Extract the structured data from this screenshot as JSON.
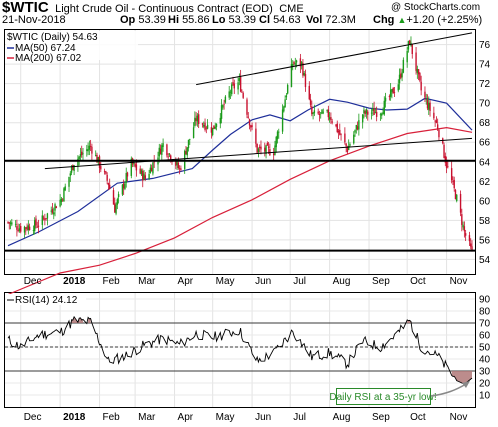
{
  "header": {
    "symbol": "$WTIC",
    "description": "Light Crude Oil - Continuous Contract (EOD)",
    "exchange": "CME",
    "watermark": "@ StockCharts.com",
    "date": "21-Nov-2018",
    "open_label": "Op",
    "open": "53.39",
    "high_label": "Hi",
    "high": "55.86",
    "low_label": "Lo",
    "low": "53.39",
    "close_label": "Cl",
    "close": "54.63",
    "volume_label": "Vol",
    "volume": "72.3M",
    "change_label": "Chg",
    "change": "+1.20 (+2.25%)",
    "up_arrow": "▲"
  },
  "legend": {
    "price": "$WTIC (Daily) 54.63",
    "ma50": "MA(50) 67.24",
    "ma200": "MA(200) 67.02"
  },
  "rsi_legend": "RSI(14) 24.12",
  "annotation": "Daily RSI at a 35-yr low!",
  "colors": {
    "candle_up": "#1a9a1a",
    "candle_down": "#c8102e",
    "ma50": "#1f2f9a",
    "ma200": "#d8203a",
    "trendline": "#000000",
    "rsi_line": "#000000",
    "rsi_fill": "#b07878",
    "annotation_text": "#2a8a2a"
  },
  "chart_data": [
    {
      "type": "candlestick",
      "title": "",
      "x_axis": {
        "labels": [
          "Dec",
          "2018",
          "Feb",
          "Mar",
          "Apr",
          "May",
          "Jun",
          "Jul",
          "Aug",
          "Sep",
          "Oct",
          "Nov"
        ],
        "range": [
          "2017-11-21",
          "2018-11-21"
        ]
      },
      "y_axis": {
        "range": [
          52.5,
          77.5
        ],
        "ticks": [
          54,
          56,
          58,
          60,
          62,
          64,
          66,
          68,
          70,
          72,
          74,
          76
        ]
      },
      "grid": true,
      "legend_position": "top-left",
      "series": [
        {
          "name": "$WTIC (Daily)",
          "kind": "price",
          "x": [
            "2017-11-21",
            "2017-12-01",
            "2017-12-15",
            "2018-01-02",
            "2018-01-12",
            "2018-01-25",
            "2018-02-08",
            "2018-02-13",
            "2018-02-26",
            "2018-03-09",
            "2018-03-23",
            "2018-04-05",
            "2018-04-18",
            "2018-05-01",
            "2018-05-15",
            "2018-05-22",
            "2018-06-05",
            "2018-06-18",
            "2018-07-03",
            "2018-07-10",
            "2018-07-18",
            "2018-08-01",
            "2018-08-15",
            "2018-08-27",
            "2018-09-10",
            "2018-09-24",
            "2018-10-03",
            "2018-10-12",
            "2018-10-25",
            "2018-11-01",
            "2018-11-09",
            "2018-11-15",
            "2018-11-21"
          ],
          "close": [
            57.8,
            57.2,
            57.6,
            60.2,
            64.0,
            65.6,
            61.8,
            59.2,
            63.8,
            62.3,
            65.8,
            63.2,
            68.4,
            67.3,
            71.3,
            72.2,
            65.2,
            65.1,
            74.1,
            74.0,
            68.8,
            68.8,
            65.3,
            68.9,
            69.2,
            72.1,
            76.4,
            71.3,
            67.6,
            63.7,
            60.2,
            56.8,
            54.63
          ]
        },
        {
          "name": "MA(50)",
          "kind": "line",
          "x": [
            "2017-11-21",
            "2017-12-15",
            "2018-01-15",
            "2018-02-15",
            "2018-03-15",
            "2018-04-15",
            "2018-05-01",
            "2018-05-15",
            "2018-06-01",
            "2018-06-15",
            "2018-07-01",
            "2018-07-15",
            "2018-08-01",
            "2018-08-15",
            "2018-09-01",
            "2018-09-15",
            "2018-10-01",
            "2018-10-15",
            "2018-11-01",
            "2018-11-21"
          ],
          "values": [
            55.4,
            56.8,
            58.9,
            61.8,
            62.3,
            63.3,
            65.2,
            66.8,
            68.3,
            68.8,
            68.2,
            69.3,
            70.4,
            70.1,
            69.5,
            69.3,
            69.4,
            70.5,
            70.0,
            67.24
          ]
        },
        {
          "name": "MA(200)",
          "kind": "line",
          "x": [
            "2017-11-21",
            "2018-01-01",
            "2018-02-01",
            "2018-03-01",
            "2018-04-01",
            "2018-05-01",
            "2018-06-01",
            "2018-07-01",
            "2018-08-01",
            "2018-09-01",
            "2018-10-01",
            "2018-11-01",
            "2018-11-21"
          ],
          "values": [
            50.4,
            52.6,
            53.4,
            54.6,
            56.2,
            58.3,
            60.1,
            62.2,
            64.1,
            65.6,
            66.9,
            67.5,
            67.02
          ]
        }
      ],
      "trendlines": {
        "channel_upper": {
          "x": [
            "2018-04-18",
            "2018-11-21"
          ],
          "y": [
            71.9,
            77.2
          ]
        },
        "channel_lower": {
          "x": [
            "2017-12-20",
            "2018-11-21"
          ],
          "y": [
            63.3,
            66.4
          ]
        },
        "support_high": {
          "y": 64.1
        },
        "support_low": {
          "y": 54.9
        }
      }
    },
    {
      "type": "line",
      "title": "",
      "x_axis": {
        "labels": [
          "Dec",
          "2018",
          "Feb",
          "Mar",
          "Apr",
          "May",
          "Jun",
          "Jul",
          "Aug",
          "Sep",
          "Oct",
          "Nov"
        ]
      },
      "y_axis": {
        "range": [
          0,
          95
        ],
        "ticks": [
          10,
          20,
          30,
          40,
          50,
          60,
          70,
          80,
          90
        ]
      },
      "reference_lines": [
        70,
        50,
        30
      ],
      "series": [
        {
          "name": "RSI(14)",
          "x": [
            "2017-11-21",
            "2017-12-01",
            "2017-12-15",
            "2018-01-02",
            "2018-01-12",
            "2018-01-25",
            "2018-02-08",
            "2018-02-20",
            "2018-03-09",
            "2018-03-23",
            "2018-04-05",
            "2018-04-18",
            "2018-05-01",
            "2018-05-22",
            "2018-06-05",
            "2018-06-18",
            "2018-07-03",
            "2018-07-18",
            "2018-08-01",
            "2018-08-15",
            "2018-08-27",
            "2018-09-10",
            "2018-09-24",
            "2018-10-03",
            "2018-10-12",
            "2018-10-25",
            "2018-11-01",
            "2018-11-09",
            "2018-11-15",
            "2018-11-21"
          ],
          "values": [
            56,
            50,
            60,
            63,
            72,
            71,
            38,
            42,
            52,
            57,
            52,
            61,
            58,
            64,
            38,
            45,
            63,
            42,
            45,
            36,
            55,
            50,
            62,
            72,
            50,
            42,
            33,
            22,
            19,
            24.12
          ]
        }
      ]
    }
  ]
}
